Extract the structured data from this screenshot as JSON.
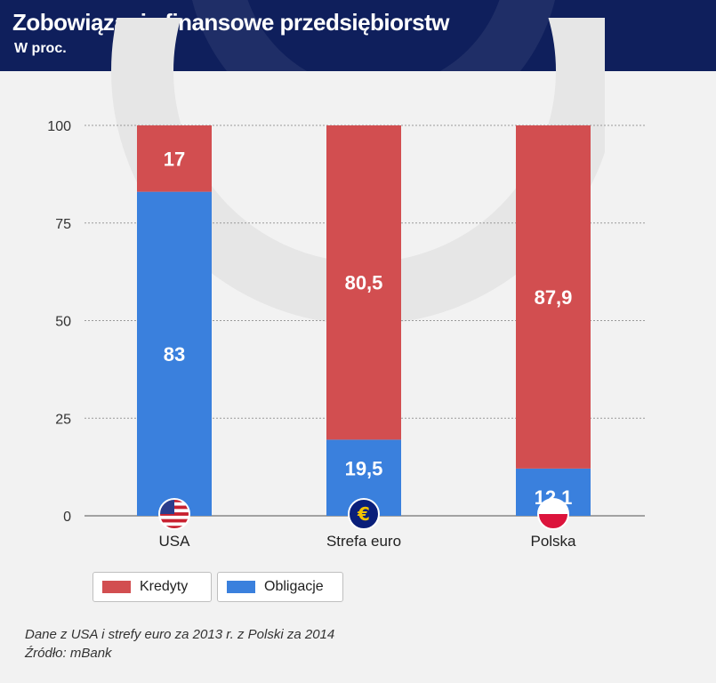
{
  "header": {
    "title": "Zobowiązania finansowe przedsiębiorstw",
    "subtitle": "W proc."
  },
  "colors": {
    "kredyty": "#d24e50",
    "obligacje": "#3a80dd",
    "header_bg": "#0f1f5c"
  },
  "chart_data": {
    "type": "bar",
    "stacked": true,
    "categories": [
      "USA",
      "Strefa euro",
      "Polska"
    ],
    "category_icons": [
      "us-flag-icon",
      "euro-icon",
      "poland-flag-icon"
    ],
    "series": [
      {
        "name": "Obligacje",
        "values": [
          83,
          19.5,
          12.1
        ],
        "labels": [
          "83",
          "19,5",
          "12,1"
        ]
      },
      {
        "name": "Kredyty",
        "values": [
          17,
          80.5,
          87.9
        ],
        "labels": [
          "17",
          "80,5",
          "87,9"
        ]
      }
    ],
    "yticks": [
      0,
      25,
      50,
      75,
      100
    ],
    "ylim": [
      0,
      100
    ],
    "title": "Zobowiązania finansowe przedsiębiorstw",
    "xlabel": "",
    "ylabel": "",
    "legend": "bottom-left"
  },
  "legend": {
    "kredyty_label": "Kredyty",
    "obligacje_label": "Obligacje"
  },
  "footer": {
    "note": "Dane z USA i strefy euro za 2013 r. z Polski za 2014",
    "source": "Źródło: mBank"
  }
}
